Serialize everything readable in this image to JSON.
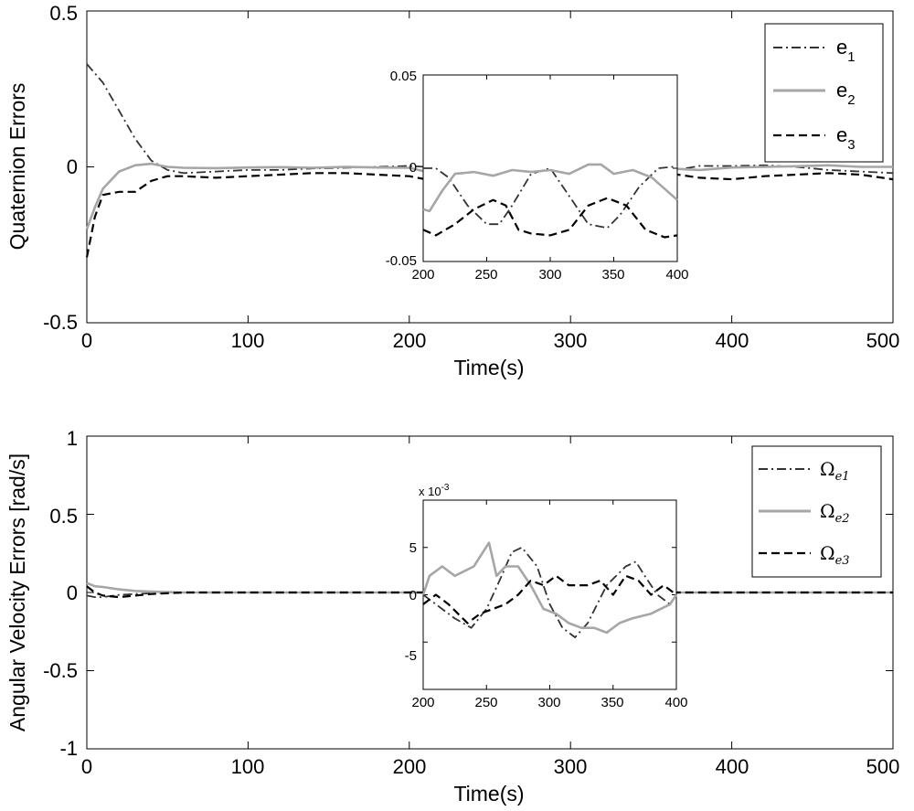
{
  "chart_data": [
    {
      "type": "line",
      "ylabel": "Quaternion Errors",
      "xlabel": "Time(s)",
      "xlim": [
        0,
        500
      ],
      "ylim": [
        -0.5,
        0.5
      ],
      "xticks": [
        "0",
        "100",
        "200",
        "300",
        "400",
        "500"
      ],
      "yticks": [
        "-0.5",
        "0",
        "0.5"
      ],
      "legend_position": "top-right",
      "series": [
        {
          "name": "e",
          "sub": "1",
          "style": "dashdot",
          "color": "#333333",
          "x": [
            0,
            10,
            20,
            30,
            40,
            50,
            60,
            80,
            100,
            120,
            140,
            160,
            180,
            200,
            210,
            240,
            260,
            280,
            300,
            320,
            340,
            360,
            380,
            400,
            420,
            440,
            460,
            480,
            500
          ],
          "y": [
            0.33,
            0.27,
            0.18,
            0.09,
            0.02,
            -0.01,
            -0.02,
            -0.015,
            -0.01,
            -0.01,
            -0.005,
            -0.003,
            0.0,
            0.003,
            0.0,
            -0.03,
            -0.03,
            0.0,
            -0.004,
            -0.03,
            -0.032,
            -0.015,
            0.003,
            0.003,
            0.005,
            0.0,
            -0.01,
            -0.015,
            -0.02
          ]
        },
        {
          "name": "e",
          "sub": "2",
          "style": "solid",
          "color": "#a6a6a6",
          "x": [
            0,
            5,
            10,
            20,
            30,
            40,
            50,
            60,
            80,
            100,
            120,
            140,
            160,
            180,
            200,
            210,
            240,
            260,
            280,
            300,
            320,
            340,
            360,
            380,
            400,
            420,
            440,
            460,
            480,
            500
          ],
          "y": [
            -0.2,
            -0.13,
            -0.07,
            -0.015,
            0.005,
            0.01,
            0.0,
            -0.003,
            -0.004,
            -0.002,
            -0.001,
            -0.003,
            0.0,
            -0.002,
            -0.003,
            -0.015,
            -0.003,
            0.0,
            0.0,
            0.0,
            -0.005,
            0.002,
            -0.005,
            -0.01,
            -0.002,
            0.0,
            0.002,
            0.005,
            0.0,
            0.0
          ]
        },
        {
          "name": "e",
          "sub": "3",
          "style": "dashed",
          "color": "#000000",
          "x": [
            0,
            5,
            10,
            20,
            30,
            40,
            50,
            60,
            80,
            100,
            120,
            140,
            160,
            180,
            200,
            210,
            240,
            260,
            280,
            300,
            320,
            340,
            360,
            380,
            400,
            420,
            440,
            460,
            480,
            500
          ],
          "y": [
            -0.29,
            -0.16,
            -0.09,
            -0.08,
            -0.08,
            -0.045,
            -0.03,
            -0.03,
            -0.035,
            -0.03,
            -0.025,
            -0.02,
            -0.02,
            -0.025,
            -0.03,
            -0.04,
            -0.025,
            -0.02,
            -0.03,
            -0.04,
            -0.03,
            -0.02,
            -0.02,
            -0.035,
            -0.04,
            -0.03,
            -0.025,
            -0.02,
            -0.025,
            -0.04
          ]
        }
      ],
      "inset": {
        "xlim": [
          200,
          400
        ],
        "ylim": [
          -0.05,
          0.05
        ],
        "xticks": [
          "200",
          "250",
          "300",
          "350",
          "400"
        ],
        "yticks": [
          "-0.05",
          "0",
          "0.05"
        ],
        "series": [
          {
            "x": [
              200,
              210,
              220,
              235,
              250,
              260,
              270,
              285,
              300,
              315,
              330,
              345,
              355,
              370,
              385,
              400
            ],
            "y": [
              0.0,
              0.0,
              -0.005,
              -0.02,
              -0.03,
              -0.03,
              -0.02,
              -0.003,
              0.0,
              -0.015,
              -0.03,
              -0.032,
              -0.025,
              -0.01,
              0.0,
              0.001
            ]
          },
          {
            "x": [
              200,
              205,
              215,
              225,
              240,
              255,
              270,
              285,
              300,
              315,
              330,
              340,
              350,
              365,
              380,
              400
            ],
            "y": [
              -0.022,
              -0.023,
              -0.012,
              -0.003,
              -0.002,
              -0.004,
              -0.001,
              -0.002,
              -0.001,
              -0.003,
              0.002,
              0.002,
              -0.003,
              -0.001,
              -0.005,
              -0.017
            ]
          },
          {
            "x": [
              200,
              210,
              225,
              240,
              255,
              265,
              275,
              285,
              300,
              315,
              330,
              345,
              360,
              375,
              390,
              400
            ],
            "y": [
              -0.033,
              -0.036,
              -0.03,
              -0.022,
              -0.017,
              -0.02,
              -0.033,
              -0.035,
              -0.036,
              -0.033,
              -0.02,
              -0.016,
              -0.02,
              -0.033,
              -0.037,
              -0.036
            ]
          }
        ]
      }
    },
    {
      "type": "line",
      "ylabel": "Angular Velocity Errors [rad/s]",
      "xlabel": "Time(s)",
      "xlim": [
        0,
        500
      ],
      "ylim": [
        -1,
        1
      ],
      "xticks": [
        "0",
        "100",
        "200",
        "300",
        "400",
        "500"
      ],
      "yticks": [
        "-1",
        "-0.5",
        "0",
        "0.5",
        "1"
      ],
      "legend_position": "top-right",
      "series": [
        {
          "name": "Ω",
          "sub": "e1",
          "style": "dashdot",
          "color": "#333333",
          "x": [
            0,
            5,
            10,
            20,
            30,
            40,
            60,
            100,
            200,
            300,
            400,
            500
          ],
          "y": [
            -0.02,
            -0.03,
            -0.03,
            -0.015,
            -0.01,
            -0.005,
            0.0,
            0.0,
            0.0,
            0.0,
            0.0,
            0.0
          ]
        },
        {
          "name": "Ω",
          "sub": "e2",
          "style": "solid",
          "color": "#a6a6a6",
          "x": [
            0,
            5,
            10,
            20,
            30,
            40,
            60,
            100,
            200,
            300,
            400,
            500
          ],
          "y": [
            0.06,
            0.04,
            0.035,
            0.02,
            0.01,
            0.005,
            0.0,
            0.0,
            0.0,
            0.0,
            0.0,
            0.0
          ]
        },
        {
          "name": "Ω",
          "sub": "e3",
          "style": "dashed",
          "color": "#000000",
          "x": [
            0,
            5,
            10,
            20,
            30,
            40,
            60,
            100,
            200,
            300,
            400,
            500
          ],
          "y": [
            0.04,
            0.0,
            -0.02,
            -0.03,
            -0.02,
            -0.01,
            0.0,
            0.0,
            0.0,
            0.0,
            0.0,
            0.0
          ]
        }
      ],
      "inset": {
        "xlim": [
          200,
          400
        ],
        "ylim": [
          -0.01,
          0.01
        ],
        "multiplier": "x 10",
        "multiplier_exp": "-3",
        "xticks": [
          "200",
          "250",
          "300",
          "350",
          "400"
        ],
        "yticks": [
          "-5",
          "0",
          "5"
        ],
        "yticks_values": [
          -0.005,
          0,
          0.005
        ],
        "series": [
          {
            "x": [
              200,
              210,
              225,
              238,
              250,
              262,
              270,
              278,
              290,
              300,
              310,
              320,
              330,
              345,
              360,
              368,
              375,
              385,
              395,
              400
            ],
            "y": [
              0.0,
              -0.001,
              -0.0025,
              -0.0035,
              -0.0015,
              0.002,
              0.0045,
              0.005,
              0.003,
              -0.001,
              -0.0035,
              -0.0045,
              -0.003,
              0.001,
              0.003,
              0.0035,
              0.002,
              0.0,
              -0.001,
              0.0
            ]
          },
          {
            "x": [
              200,
              205,
              215,
              225,
              240,
              252,
              258,
              265,
              275,
              285,
              295,
              305,
              315,
              325,
              335,
              345,
              355,
              365,
              380,
              395,
              400
            ],
            "y": [
              0.0,
              0.002,
              0.003,
              0.002,
              0.003,
              0.0055,
              0.002,
              0.003,
              0.003,
              0.001,
              -0.0015,
              -0.002,
              -0.003,
              -0.0035,
              -0.0035,
              -0.004,
              -0.003,
              -0.0025,
              -0.002,
              -0.001,
              0.0
            ]
          },
          {
            "x": [
              200,
              210,
              220,
              235,
              245,
              255,
              265,
              275,
              285,
              295,
              305,
              315,
              330,
              340,
              350,
              360,
              370,
              380,
              390,
              400
            ],
            "y": [
              -0.001,
              0.0,
              -0.001,
              -0.003,
              -0.002,
              -0.0015,
              -0.001,
              0.0,
              0.0015,
              0.001,
              0.002,
              0.001,
              0.001,
              0.0015,
              0.0,
              0.002,
              0.0015,
              0.0,
              0.001,
              0.0
            ]
          }
        ]
      }
    }
  ],
  "colors": {
    "axis": "#000000",
    "e1": "#333333",
    "e2": "#a6a6a6",
    "e3": "#000000"
  }
}
